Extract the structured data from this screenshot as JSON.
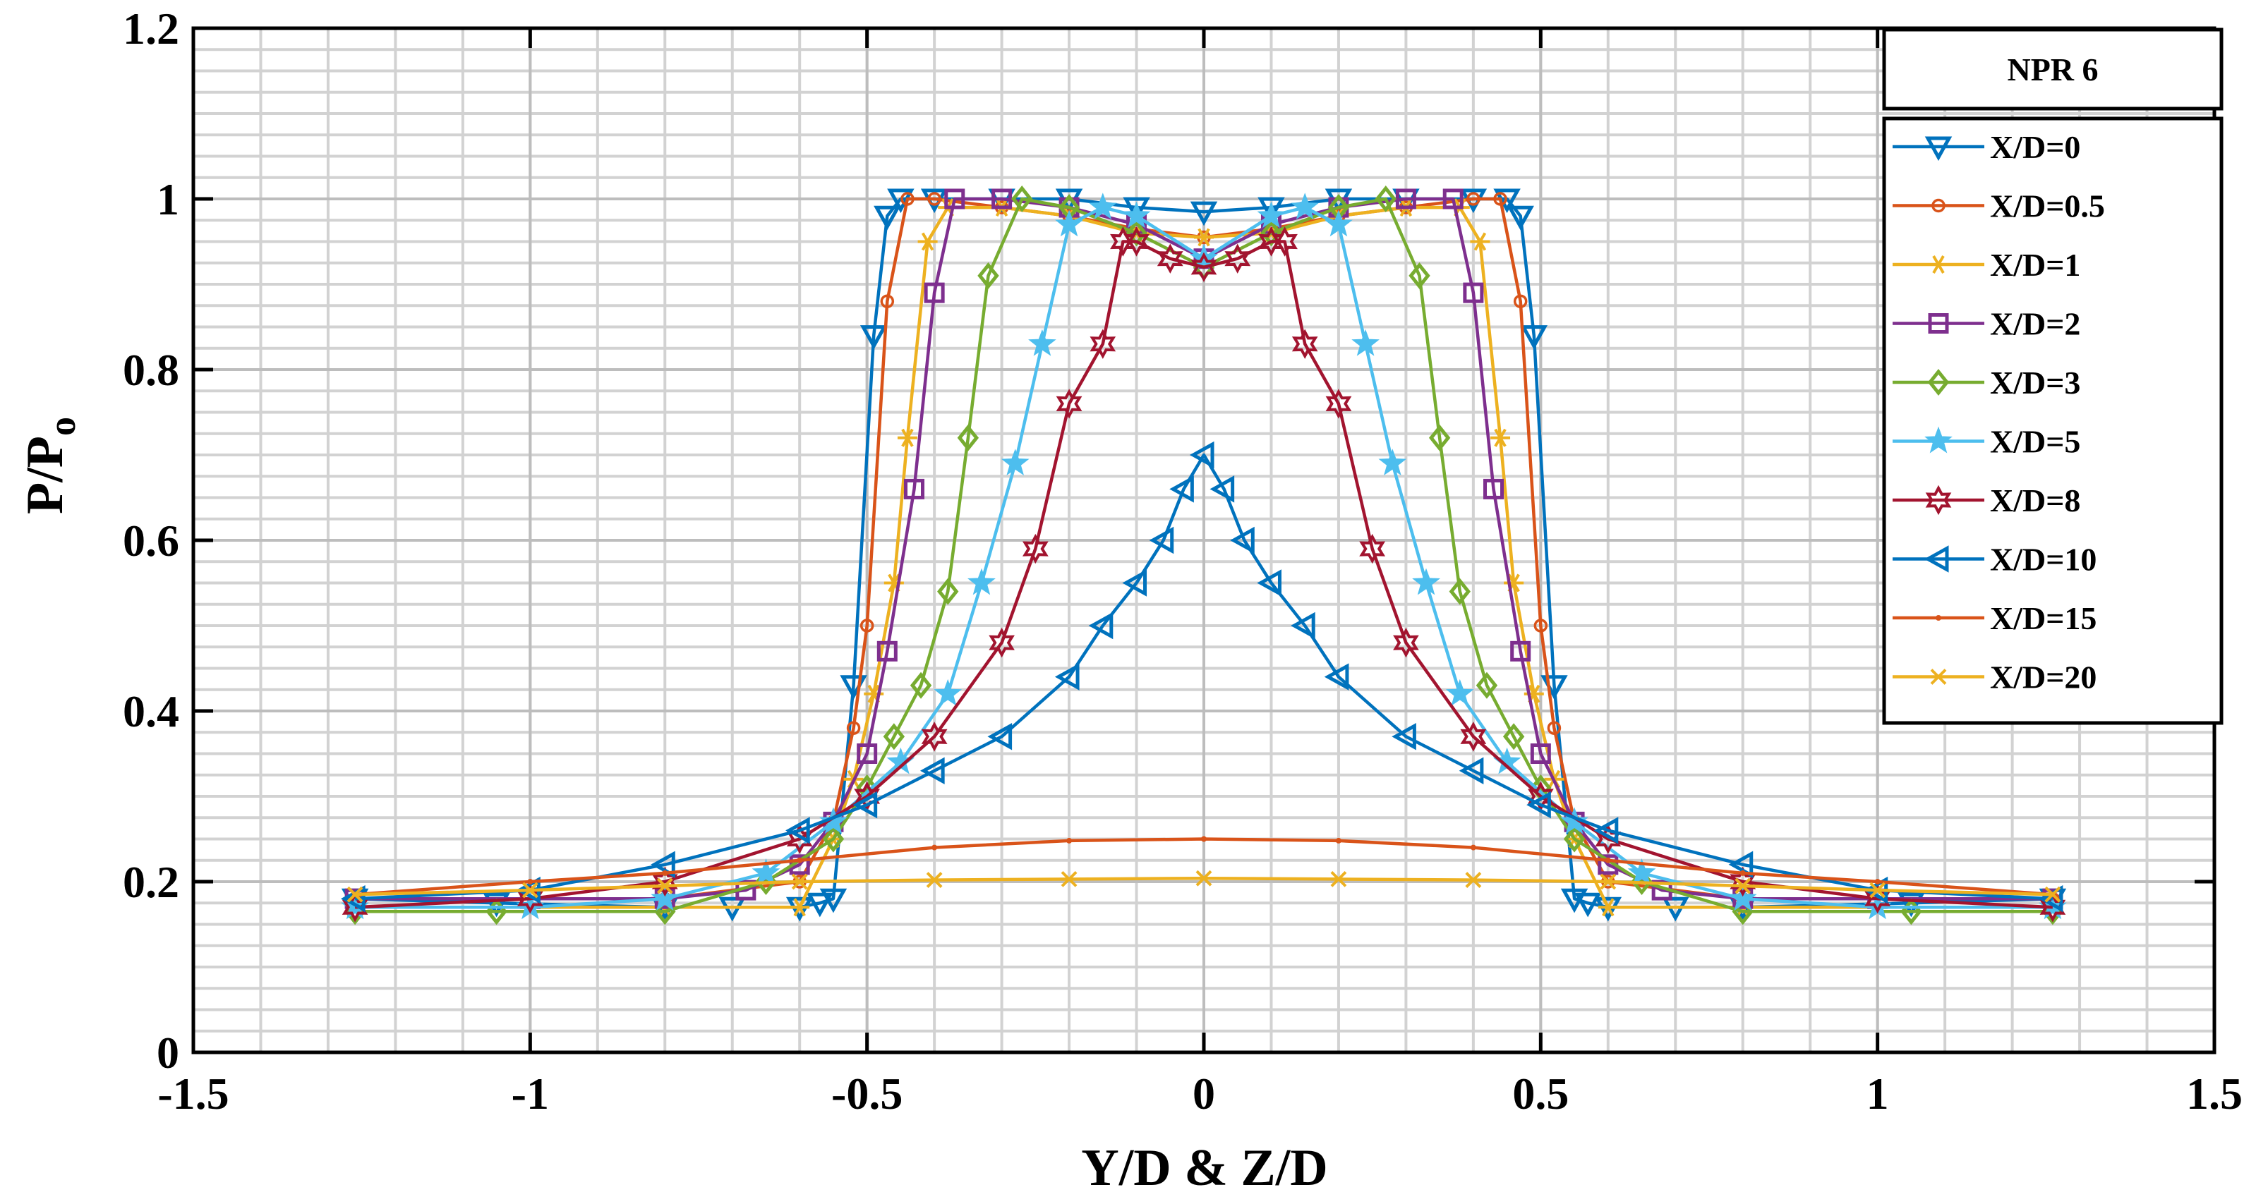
{
  "chart_data": {
    "type": "line",
    "title": "",
    "xlabel": "Y/D & Z/D",
    "ylabel_main": "P/P",
    "ylabel_sub": "o",
    "xlim": [
      -1.5,
      1.5
    ],
    "ylim": [
      0,
      1.2
    ],
    "x_ticks": [
      -1.5,
      -1,
      -0.5,
      0,
      0.5,
      1,
      1.5
    ],
    "x_tick_labels": [
      "-1.5",
      "-1",
      "-0.5",
      "0",
      "0.5",
      "1",
      "1.5"
    ],
    "y_ticks": [
      0,
      0.2,
      0.4,
      0.6,
      0.8,
      1,
      1.2
    ],
    "y_tick_labels": [
      "0",
      "0.2",
      "0.4",
      "0.6",
      "0.8",
      "1",
      "1.2"
    ],
    "x_minor_step": 0.1,
    "y_minor_step": 0.025,
    "grid": true,
    "legend": {
      "title": "NPR 6",
      "position": "top-right",
      "entries": [
        "X/D=0",
        "X/D=0.5",
        "X/D=1",
        "X/D=2",
        "X/D=3",
        "X/D=5",
        "X/D=8",
        "X/D=10",
        "X/D=15",
        "X/D=20"
      ]
    },
    "series": [
      {
        "name": "X/D=0",
        "color": "#0072BD",
        "marker": "triangle-down",
        "x": [
          -1.26,
          -1.05,
          -0.8,
          -0.7,
          -0.6,
          -0.57,
          -0.55,
          -0.52,
          -0.49,
          -0.47,
          -0.45,
          -0.4,
          -0.3,
          -0.2,
          -0.1,
          0,
          0.1,
          0.2,
          0.3,
          0.4,
          0.45,
          0.47,
          0.49,
          0.52,
          0.55,
          0.57,
          0.6,
          0.7,
          0.8,
          1.05,
          1.26
        ],
        "y": [
          0.18,
          0.175,
          0.17,
          0.17,
          0.17,
          0.175,
          0.18,
          0.43,
          0.84,
          0.98,
          1.0,
          1.0,
          1.0,
          1.0,
          0.99,
          0.985,
          0.99,
          1.0,
          1.0,
          1.0,
          1.0,
          0.98,
          0.84,
          0.43,
          0.18,
          0.175,
          0.17,
          0.17,
          0.17,
          0.175,
          0.18
        ]
      },
      {
        "name": "X/D=0.5",
        "color": "#D95319",
        "marker": "circle",
        "x": [
          -1.26,
          -0.8,
          -0.6,
          -0.55,
          -0.52,
          -0.5,
          -0.47,
          -0.44,
          -0.4,
          -0.3,
          -0.2,
          -0.1,
          0,
          0.1,
          0.2,
          0.3,
          0.4,
          0.44,
          0.47,
          0.5,
          0.52,
          0.55,
          0.6,
          0.8,
          1.26
        ],
        "y": [
          0.18,
          0.18,
          0.2,
          0.27,
          0.38,
          0.5,
          0.88,
          1.0,
          1.0,
          0.99,
          0.98,
          0.965,
          0.955,
          0.965,
          0.98,
          0.99,
          1.0,
          1.0,
          0.88,
          0.5,
          0.38,
          0.27,
          0.2,
          0.18,
          0.18
        ]
      },
      {
        "name": "X/D=1",
        "color": "#EDB120",
        "marker": "asterisk",
        "x": [
          -1.26,
          -0.8,
          -0.6,
          -0.55,
          -0.52,
          -0.49,
          -0.46,
          -0.44,
          -0.41,
          -0.38,
          -0.3,
          -0.2,
          -0.1,
          0,
          0.1,
          0.2,
          0.3,
          0.38,
          0.41,
          0.44,
          0.46,
          0.49,
          0.52,
          0.55,
          0.6,
          0.8,
          1.26
        ],
        "y": [
          0.17,
          0.17,
          0.17,
          0.25,
          0.32,
          0.42,
          0.55,
          0.72,
          0.95,
          0.99,
          0.99,
          0.98,
          0.96,
          0.955,
          0.96,
          0.98,
          0.99,
          0.99,
          0.95,
          0.72,
          0.55,
          0.42,
          0.32,
          0.25,
          0.17,
          0.17,
          0.17
        ]
      },
      {
        "name": "X/D=2",
        "color": "#7E2F8E",
        "marker": "square",
        "x": [
          -1.26,
          -1.0,
          -0.8,
          -0.68,
          -0.6,
          -0.55,
          -0.5,
          -0.47,
          -0.43,
          -0.4,
          -0.37,
          -0.3,
          -0.2,
          -0.1,
          0,
          0.1,
          0.2,
          0.3,
          0.37,
          0.4,
          0.43,
          0.47,
          0.5,
          0.55,
          0.6,
          0.68,
          0.8,
          1.0,
          1.26
        ],
        "y": [
          0.18,
          0.18,
          0.18,
          0.19,
          0.22,
          0.27,
          0.35,
          0.47,
          0.66,
          0.89,
          1.0,
          1.0,
          0.99,
          0.97,
          0.93,
          0.97,
          0.99,
          1.0,
          1.0,
          0.89,
          0.66,
          0.47,
          0.35,
          0.27,
          0.22,
          0.19,
          0.18,
          0.18,
          0.18
        ]
      },
      {
        "name": "X/D=3",
        "color": "#77AC30",
        "marker": "diamond",
        "x": [
          -1.26,
          -1.05,
          -0.8,
          -0.65,
          -0.55,
          -0.5,
          -0.46,
          -0.42,
          -0.38,
          -0.35,
          -0.32,
          -0.27,
          -0.2,
          -0.1,
          0,
          0.1,
          0.2,
          0.27,
          0.32,
          0.35,
          0.38,
          0.42,
          0.46,
          0.5,
          0.55,
          0.65,
          0.8,
          1.05,
          1.26
        ],
        "y": [
          0.165,
          0.165,
          0.165,
          0.2,
          0.25,
          0.31,
          0.37,
          0.43,
          0.54,
          0.72,
          0.91,
          1.0,
          0.99,
          0.96,
          0.92,
          0.96,
          0.99,
          1.0,
          0.91,
          0.72,
          0.54,
          0.43,
          0.37,
          0.31,
          0.25,
          0.2,
          0.165,
          0.165,
          0.165
        ]
      },
      {
        "name": "X/D=5",
        "color": "#4DBEEE",
        "marker": "pentagram",
        "x": [
          -1.26,
          -1.0,
          -0.8,
          -0.65,
          -0.55,
          -0.45,
          -0.38,
          -0.33,
          -0.28,
          -0.24,
          -0.2,
          -0.15,
          -0.1,
          0,
          0.1,
          0.15,
          0.2,
          0.24,
          0.28,
          0.33,
          0.38,
          0.45,
          0.55,
          0.65,
          0.8,
          1.0,
          1.26
        ],
        "y": [
          0.17,
          0.17,
          0.18,
          0.21,
          0.27,
          0.34,
          0.42,
          0.55,
          0.69,
          0.83,
          0.97,
          0.99,
          0.98,
          0.93,
          0.98,
          0.99,
          0.97,
          0.83,
          0.69,
          0.55,
          0.42,
          0.34,
          0.27,
          0.21,
          0.18,
          0.17,
          0.17
        ]
      },
      {
        "name": "X/D=8",
        "color": "#A2142F",
        "marker": "hexagram",
        "x": [
          -1.26,
          -1.0,
          -0.8,
          -0.6,
          -0.5,
          -0.4,
          -0.3,
          -0.25,
          -0.2,
          -0.15,
          -0.12,
          -0.1,
          -0.05,
          0,
          0.05,
          0.1,
          0.12,
          0.15,
          0.2,
          0.25,
          0.3,
          0.4,
          0.5,
          0.6,
          0.8,
          1.0,
          1.26
        ],
        "y": [
          0.17,
          0.18,
          0.2,
          0.25,
          0.3,
          0.37,
          0.48,
          0.59,
          0.76,
          0.83,
          0.95,
          0.95,
          0.93,
          0.92,
          0.93,
          0.95,
          0.95,
          0.83,
          0.76,
          0.59,
          0.48,
          0.37,
          0.3,
          0.25,
          0.2,
          0.18,
          0.17
        ]
      },
      {
        "name": "X/D=10",
        "color": "#0072BD",
        "marker": "triangle-left",
        "x": [
          -1.26,
          -1.0,
          -0.8,
          -0.6,
          -0.5,
          -0.4,
          -0.3,
          -0.2,
          -0.15,
          -0.1,
          -0.06,
          -0.03,
          0,
          0.03,
          0.06,
          0.1,
          0.15,
          0.2,
          0.3,
          0.4,
          0.5,
          0.6,
          0.8,
          1.0,
          1.26
        ],
        "y": [
          0.18,
          0.19,
          0.22,
          0.26,
          0.29,
          0.33,
          0.37,
          0.44,
          0.5,
          0.55,
          0.6,
          0.66,
          0.7,
          0.66,
          0.6,
          0.55,
          0.5,
          0.44,
          0.37,
          0.33,
          0.29,
          0.26,
          0.22,
          0.19,
          0.18
        ]
      },
      {
        "name": "X/D=15",
        "color": "#D95319",
        "marker": "point",
        "x": [
          -1.26,
          -1.0,
          -0.8,
          -0.6,
          -0.4,
          -0.2,
          0,
          0.2,
          0.4,
          0.6,
          0.8,
          1.0,
          1.26
        ],
        "y": [
          0.185,
          0.2,
          0.21,
          0.225,
          0.24,
          0.248,
          0.25,
          0.248,
          0.24,
          0.225,
          0.21,
          0.2,
          0.185
        ]
      },
      {
        "name": "X/D=20",
        "color": "#EDB120",
        "marker": "x",
        "x": [
          -1.26,
          -1.0,
          -0.8,
          -0.6,
          -0.4,
          -0.2,
          0,
          0.2,
          0.4,
          0.6,
          0.8,
          1.0,
          1.26
        ],
        "y": [
          0.185,
          0.19,
          0.195,
          0.2,
          0.202,
          0.203,
          0.204,
          0.203,
          0.202,
          0.2,
          0.195,
          0.19,
          0.185
        ]
      }
    ]
  }
}
